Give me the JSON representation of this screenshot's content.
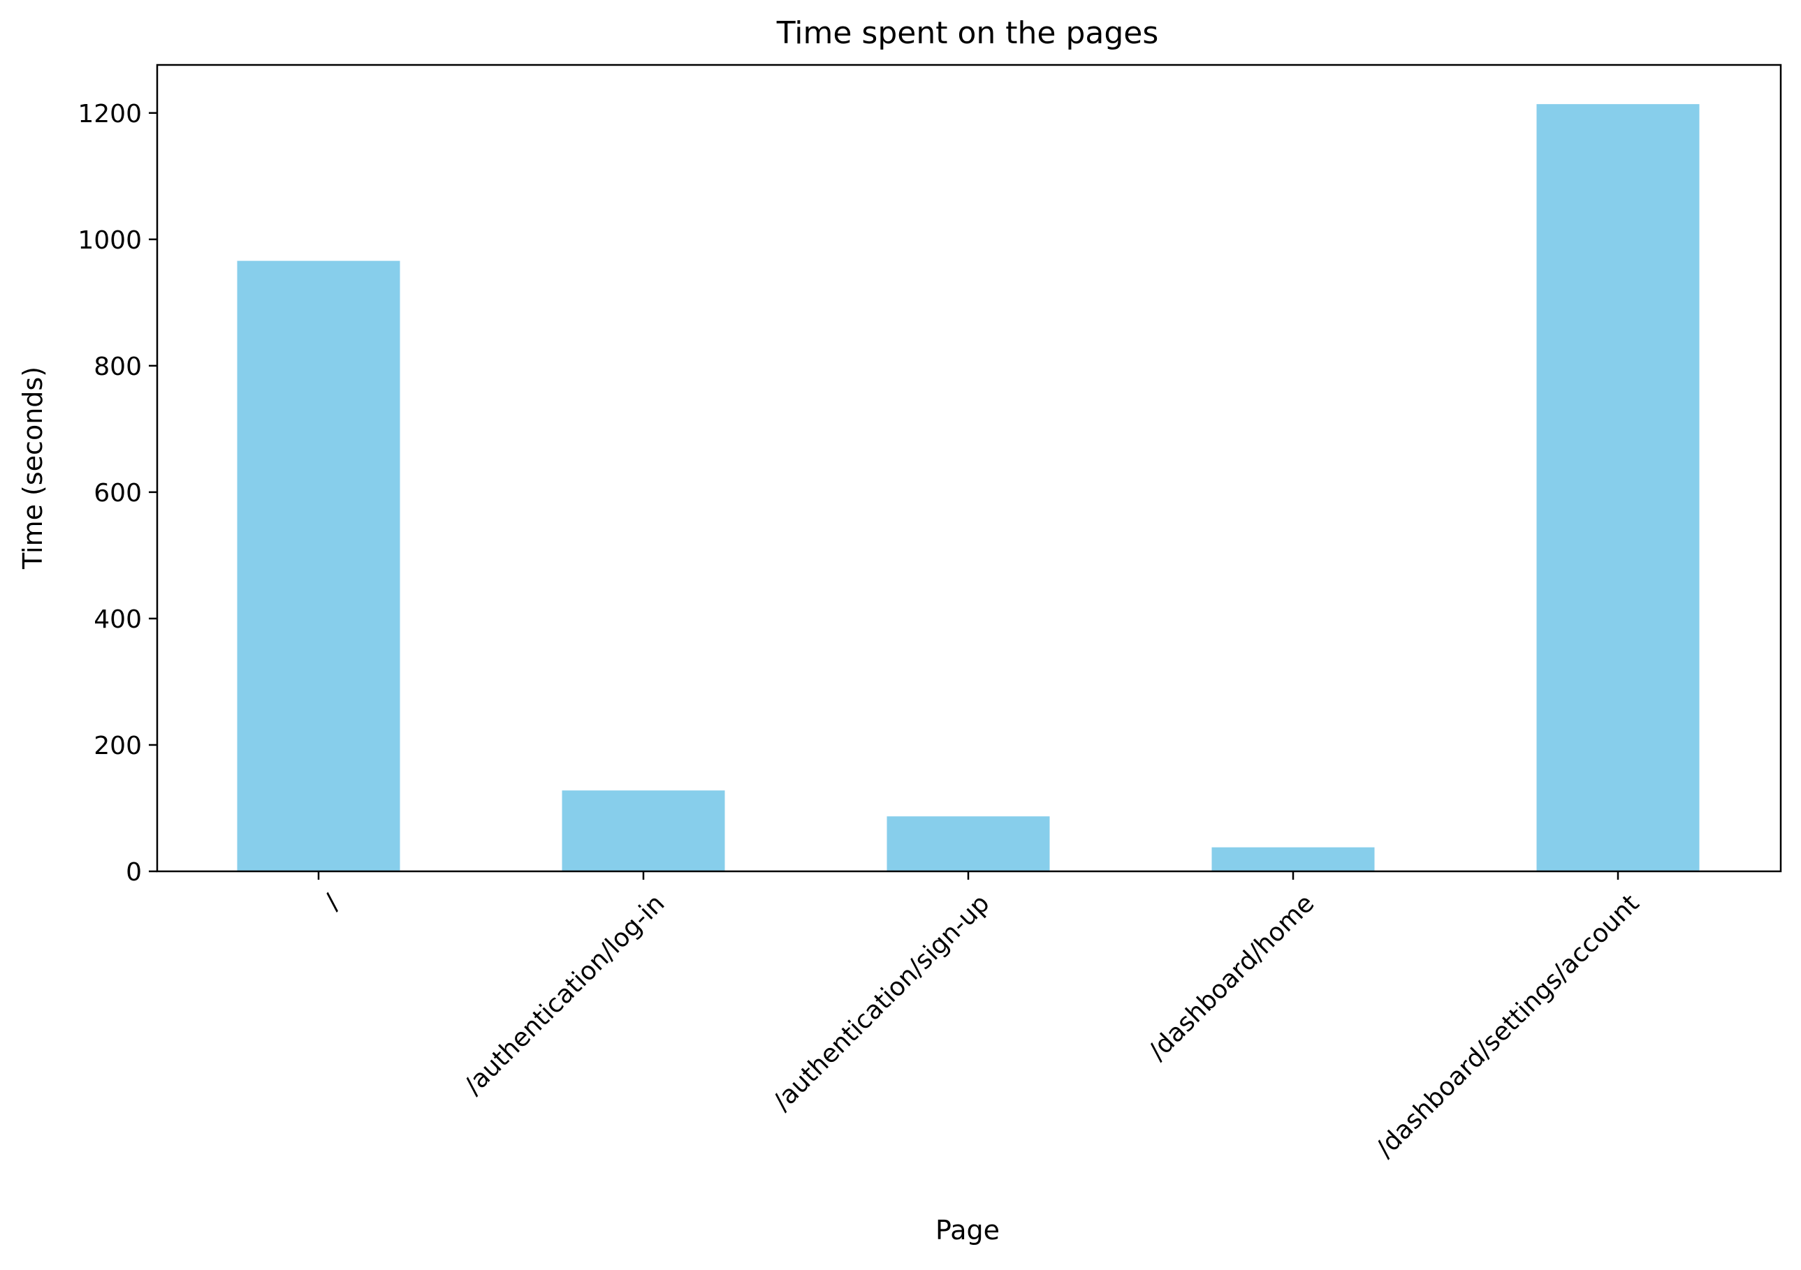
{
  "chart_data": {
    "type": "bar",
    "title": "Time spent on the pages",
    "xlabel": "Page",
    "ylabel": "Time (seconds)",
    "categories": [
      "/",
      "/authentication/log-in",
      "/authentication/sign-up",
      "/dashboard/home",
      "/dashboard/settings/account"
    ],
    "values": [
      966,
      128,
      87,
      38,
      1214
    ],
    "ylim": [
      0,
      1276
    ],
    "yticks": [
      0,
      200,
      400,
      600,
      800,
      1000,
      1200
    ],
    "grid": false,
    "bar_color": "#87CEEB",
    "x_tick_rotation_deg": 45
  }
}
